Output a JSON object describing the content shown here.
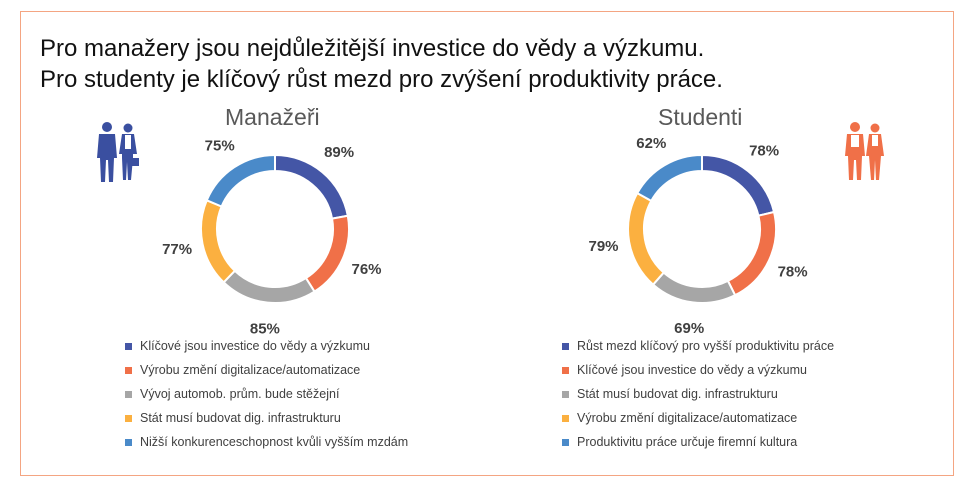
{
  "headline": {
    "line1": "Pro manažery jsou nejdůležitější investice do vědy a výzkumu.",
    "line2": "Pro studenty je klíčový růst mezd pro zvýšení produktivity práce."
  },
  "colors": {
    "frame": "#f4a582",
    "dark_blue": "#4456a6",
    "orange": "#f07048",
    "gray": "#a6a6a6",
    "yellow": "#fbb040",
    "light_blue": "#4a8ac9",
    "managers_figures": "#3a4fa0",
    "students_figures": "#f07048"
  },
  "icons": {
    "managers": "business-people-icon",
    "students": "students-people-icon"
  },
  "chart_data": [
    {
      "type": "pie",
      "subtype": "donut",
      "title": "Manažeři",
      "categories": [
        "Klíčové jsou investice do vědy a výzkumu",
        "Výrobu změní digitalizace/automatizace",
        "Vývoj automob. prům. bude stěžejní",
        "Stát musí budovat dig. infrastrukturu",
        "Nižší konkurenceschopnost kvůli vyšším mzdám"
      ],
      "values": [
        89,
        76,
        85,
        77,
        75
      ],
      "labels": [
        "89%",
        "76%",
        "85%",
        "77%",
        "75%"
      ],
      "colors": [
        "#4456a6",
        "#f07048",
        "#a6a6a6",
        "#fbb040",
        "#4a8ac9"
      ],
      "legend_position": "bottom"
    },
    {
      "type": "pie",
      "subtype": "donut",
      "title": "Studenti",
      "categories": [
        "Růst mezd klíčový pro vyšší produktivitu práce",
        "Klíčové jsou investice do vědy a výzkumu",
        "Stát musí budovat dig. infrastrukturu",
        "Výrobu změní digitalizace/automatizace",
        "Produktivitu práce určuje firemní kultura"
      ],
      "values": [
        78,
        78,
        69,
        79,
        62
      ],
      "labels": [
        "78%",
        "78%",
        "69%",
        "79%",
        "62%"
      ],
      "colors": [
        "#4456a6",
        "#f07048",
        "#a6a6a6",
        "#fbb040",
        "#4a8ac9"
      ],
      "legend_position": "bottom"
    }
  ]
}
